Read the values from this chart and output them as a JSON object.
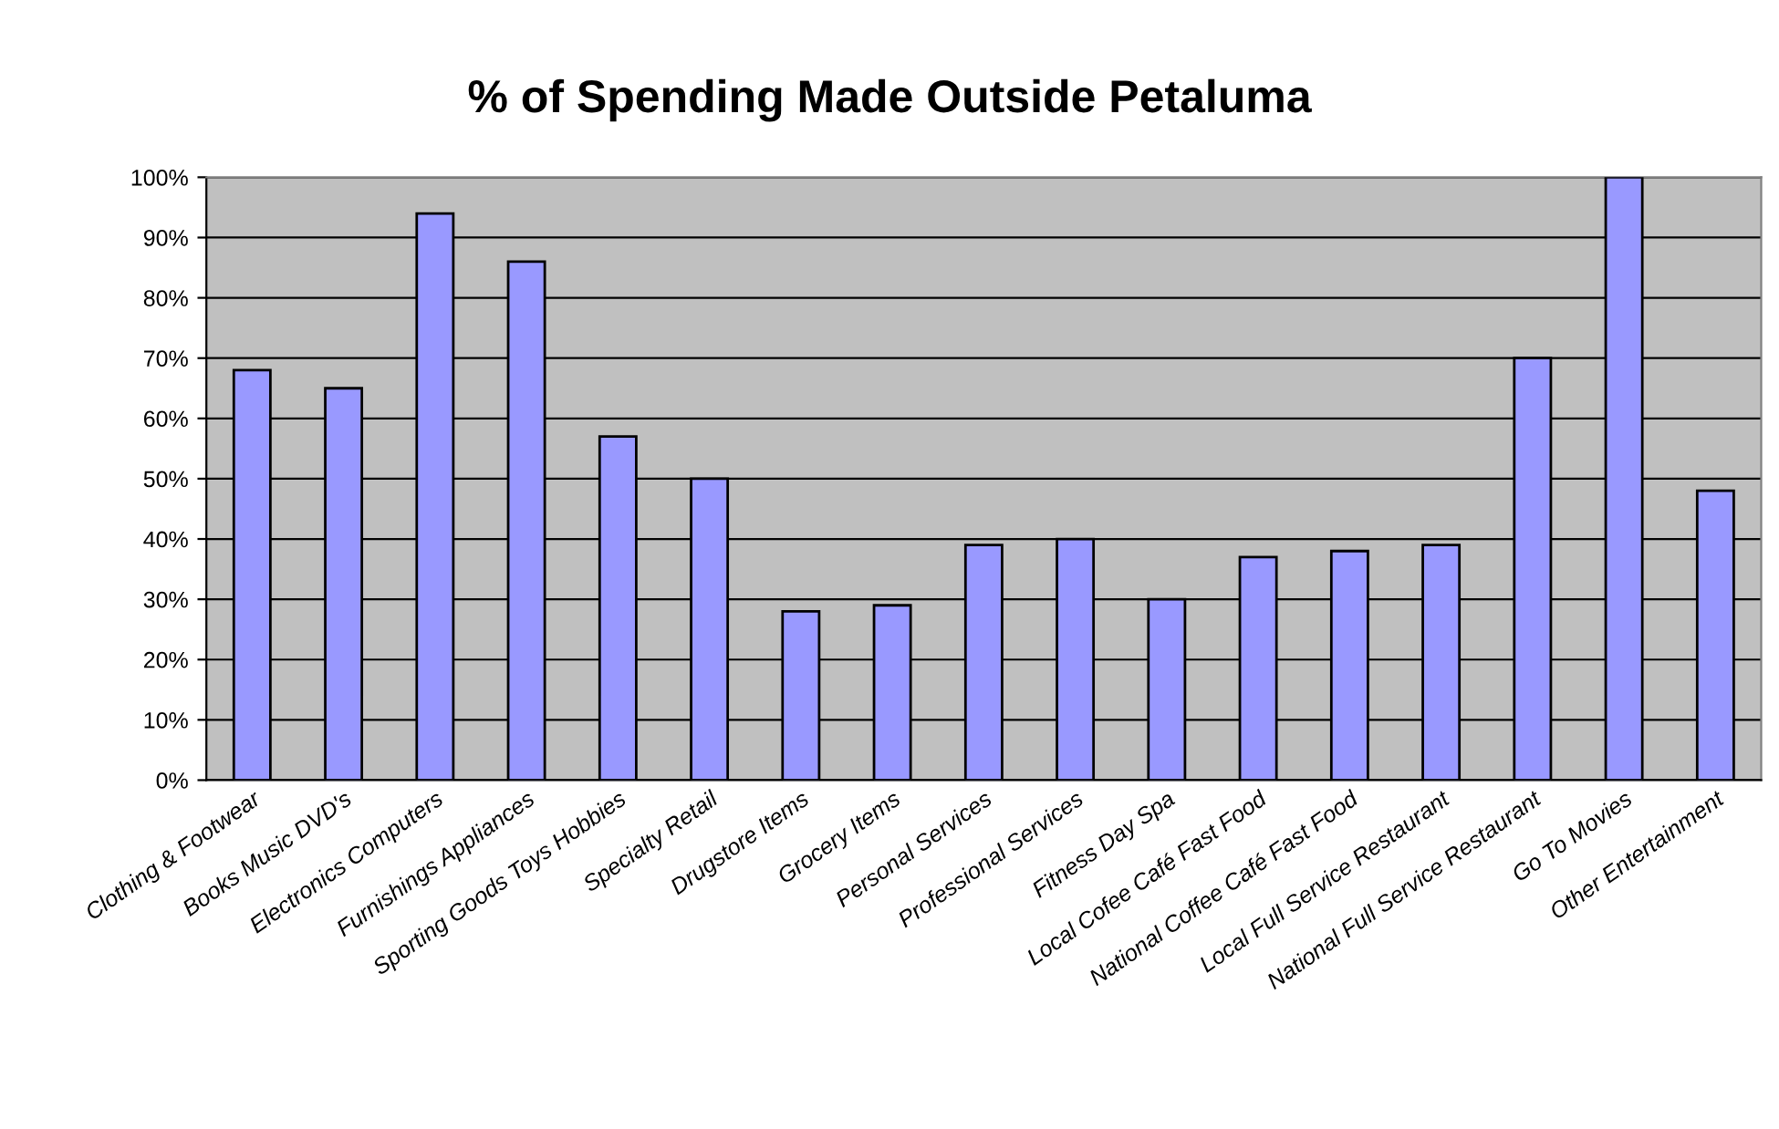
{
  "chart_data": {
    "type": "bar",
    "title": "% of Spending Made Outside Petaluma",
    "categories": [
      "Clothing & Footwear",
      "Books Music DVD's",
      "Electronics Computers",
      "Furnishings Appliances",
      "Sporting Goods Toys Hobbies",
      "Specialty Retail",
      "Drugstore Items",
      "Grocery Items",
      "Personal Services",
      "Professional Services",
      "Fitness Day Spa",
      "Local Cofee Café Fast Food",
      "National Coffee Café Fast Food",
      "Local Full Service Restaurant",
      "National Full Service Restaurant",
      "Go To Movies",
      "Other Entertainment"
    ],
    "values": [
      68,
      65,
      94,
      86,
      57,
      50,
      28,
      29,
      39,
      40,
      30,
      37,
      38,
      39,
      70,
      100,
      48
    ],
    "color": "#9999ff",
    "ylim": [
      0,
      100
    ],
    "yticks": [
      {
        "value": 0,
        "label": "0%"
      },
      {
        "value": 10,
        "label": "10%"
      },
      {
        "value": 20,
        "label": "20%"
      },
      {
        "value": 30,
        "label": "30%"
      },
      {
        "value": 40,
        "label": "40%"
      },
      {
        "value": 50,
        "label": "50%"
      },
      {
        "value": 60,
        "label": "60%"
      },
      {
        "value": 70,
        "label": "70%"
      },
      {
        "value": 80,
        "label": "80%"
      },
      {
        "value": 90,
        "label": "90%"
      },
      {
        "value": 100,
        "label": "100%"
      }
    ],
    "grid": "y"
  }
}
